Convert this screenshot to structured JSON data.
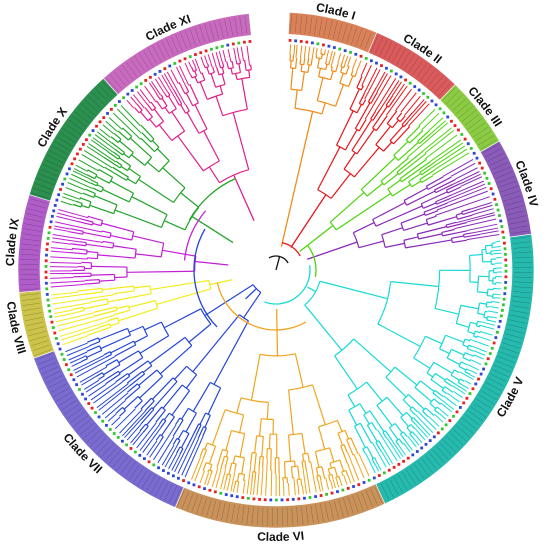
{
  "clades": [
    {
      "label": "Clade I",
      "ring_color": "#d9825a",
      "branch_color": "#f08c1a"
    },
    {
      "label": "Clade II",
      "ring_color": "#d95b5b",
      "branch_color": "#e8161b"
    },
    {
      "label": "Clade III",
      "ring_color": "#8acb43",
      "branch_color": "#4fd40f"
    },
    {
      "label": "Clade IV",
      "ring_color": "#8a5bb8",
      "branch_color": "#8a2ab8"
    },
    {
      "label": "Clade V",
      "ring_color": "#26b9ad",
      "branch_color": "#19d9d6"
    },
    {
      "label": "Clade VI",
      "ring_color": "#c9925a",
      "branch_color": "#f0a51f"
    },
    {
      "label": "Clade VII",
      "ring_color": "#7a6bd0",
      "branch_color": "#2546d6"
    },
    {
      "label": "Clade VIII",
      "ring_color": "#cbc34a",
      "branch_color": "#f2ec1a"
    },
    {
      "label": "Clade IX",
      "ring_color": "#b15dc9",
      "branch_color": "#c21fd6"
    },
    {
      "label": "Clade X",
      "ring_color": "#2b8f4f",
      "branch_color": "#22a52a"
    },
    {
      "label": "Clade XI",
      "ring_color": "#c86bbf",
      "branch_color": "#e0208c"
    }
  ],
  "marker_colors": [
    "#e82020",
    "#33c633",
    "#2d46d8"
  ],
  "root_color": "#111111"
}
